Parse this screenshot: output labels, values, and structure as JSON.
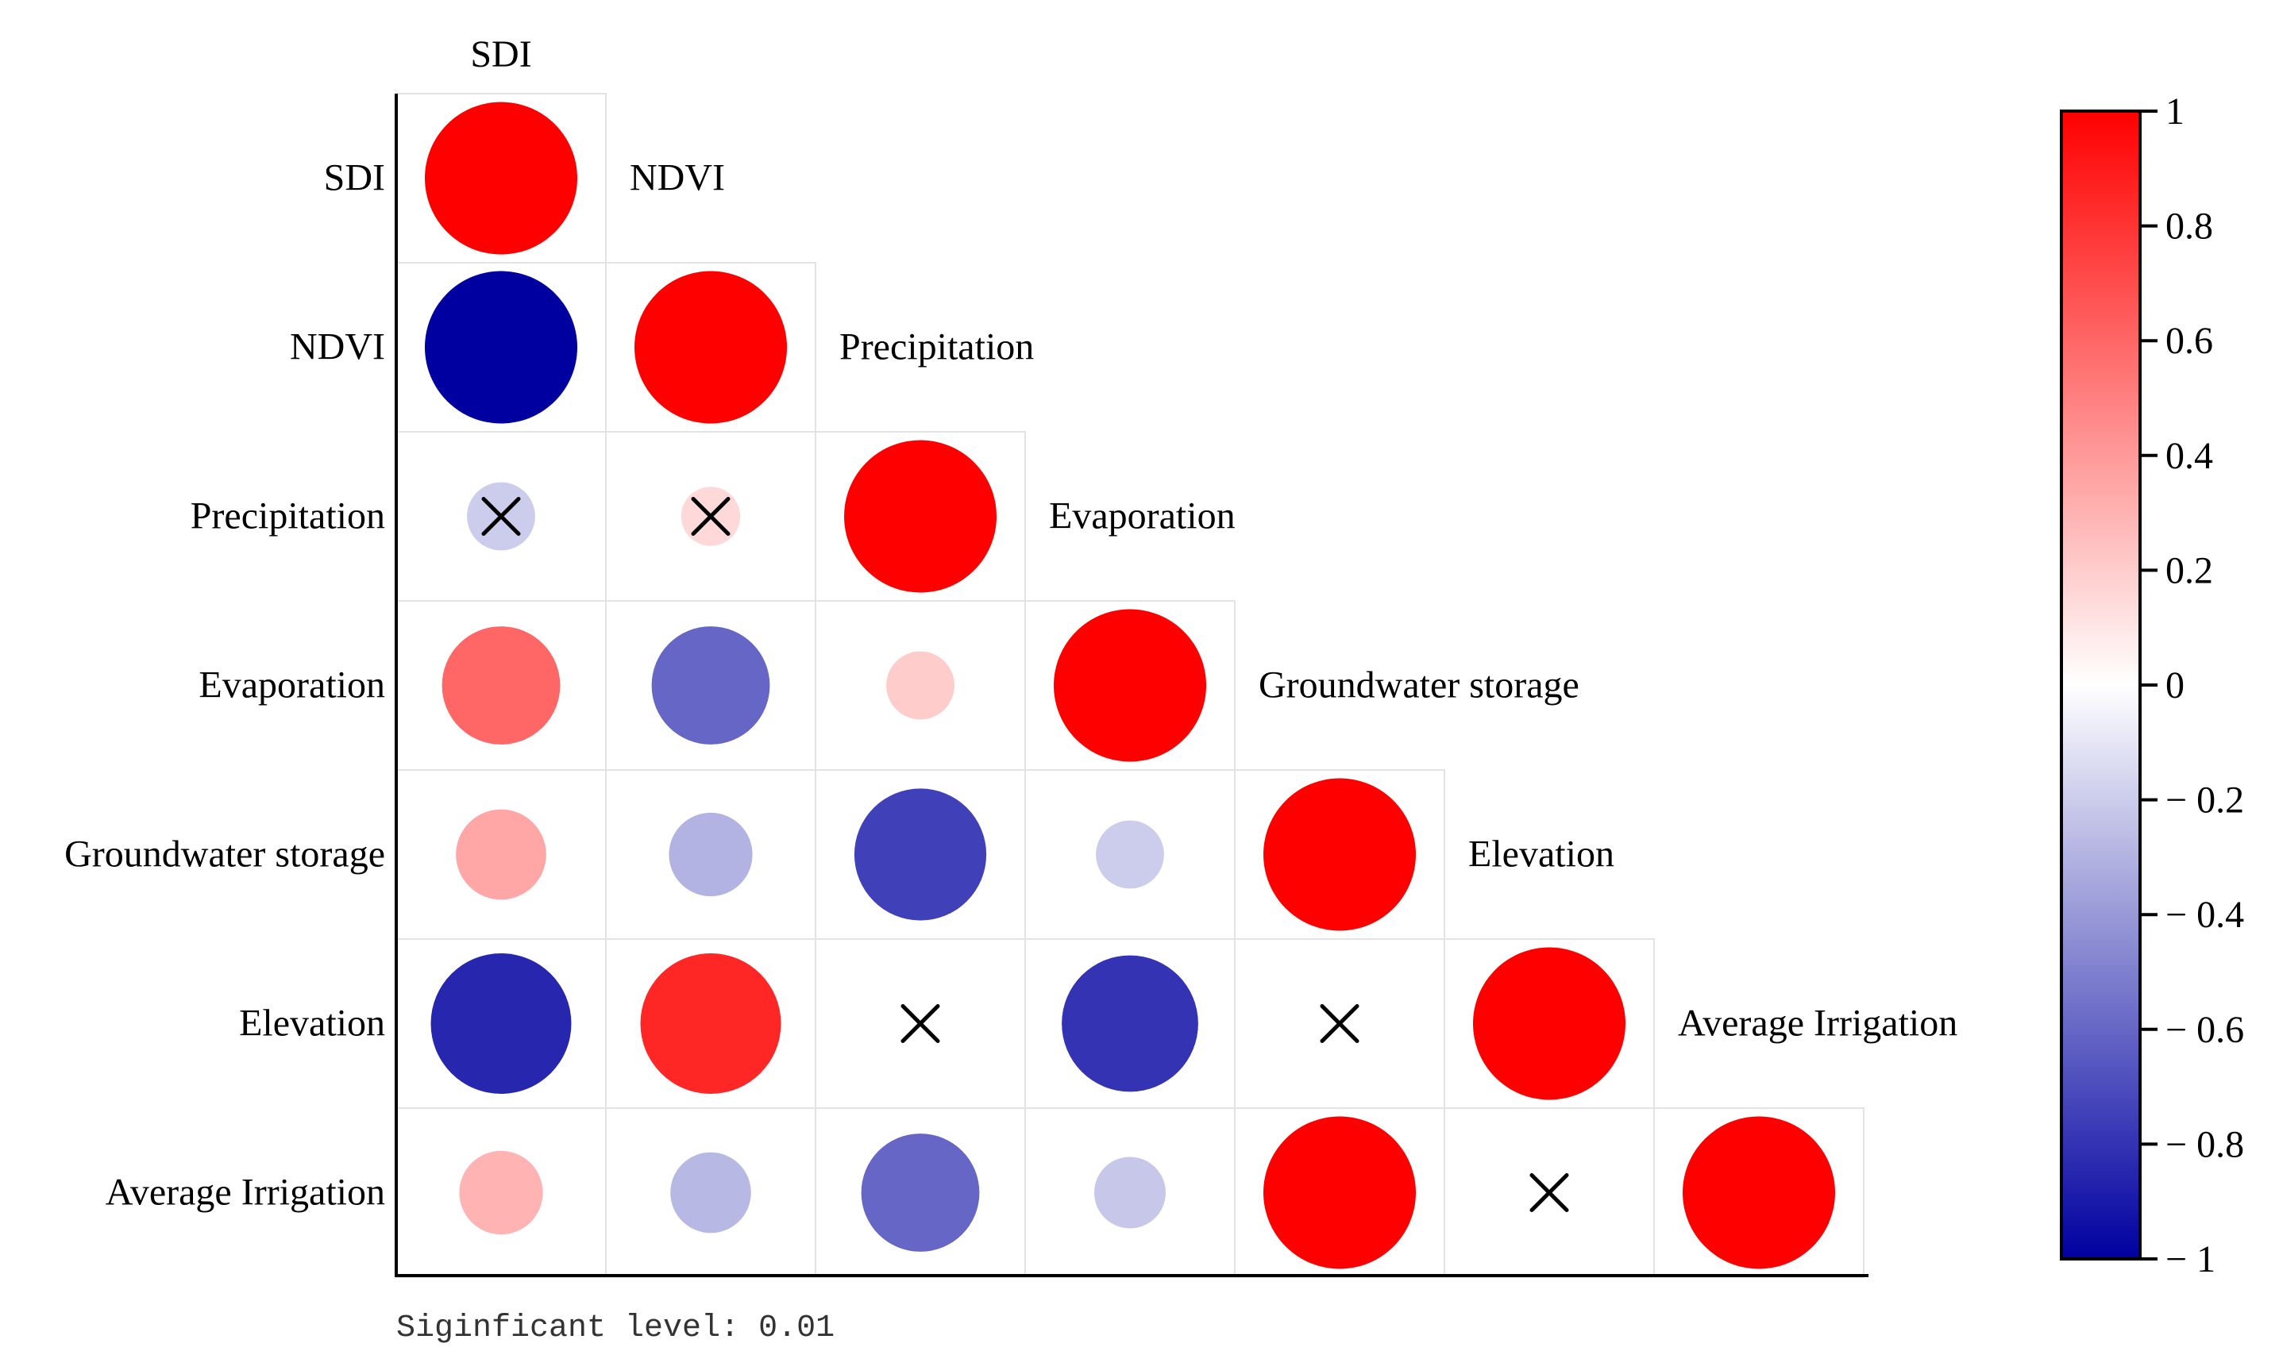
{
  "chart_data": {
    "type": "heatmap",
    "variables": [
      "SDI",
      "NDVI",
      "Precipitation",
      "Evaporation",
      "Groundwater storage",
      "Elevation",
      "Average Irrigation"
    ],
    "correlations": [
      [
        1.0
      ],
      [
        -1.0,
        1.0
      ],
      [
        -0.2,
        0.15,
        1.0
      ],
      [
        0.6,
        -0.6,
        0.2,
        1.0
      ],
      [
        0.35,
        -0.3,
        -0.75,
        -0.2,
        1.0
      ],
      [
        -0.85,
        0.85,
        0.0,
        -0.8,
        0.0,
        1.0
      ],
      [
        0.3,
        -0.28,
        -0.6,
        -0.22,
        1.0,
        0.0,
        1.0
      ]
    ],
    "not_significant": [
      [
        2,
        0
      ],
      [
        2,
        1
      ],
      [
        5,
        2
      ],
      [
        5,
        4
      ],
      [
        6,
        5
      ]
    ],
    "colorbar": {
      "ticks": [
        "1",
        "0.8",
        "0.6",
        "0.4",
        "0.2",
        "0",
        "− 0.2",
        "− 0.4",
        "− 0.6",
        "− 0.8",
        "− 1"
      ],
      "range": [
        -1,
        1
      ],
      "colors": {
        "negative": "#0000a0",
        "zero": "#ffffff",
        "positive": "#ff0000"
      }
    },
    "note": "Siginficant level: 0.01"
  }
}
